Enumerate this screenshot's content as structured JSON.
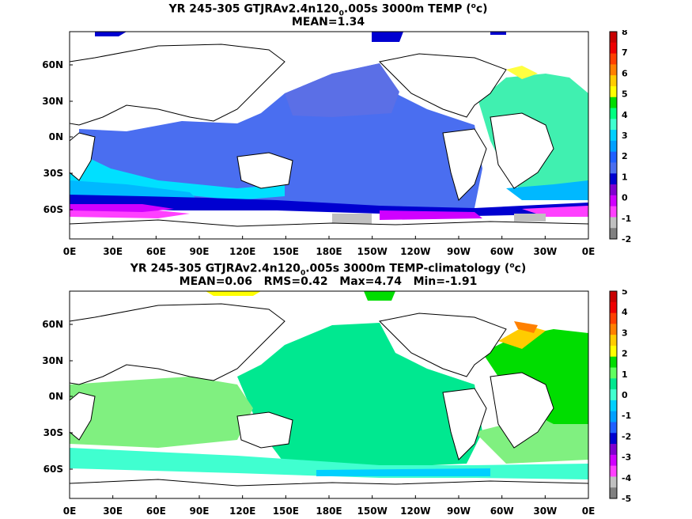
{
  "maps": [
    {
      "title_prefix": "YR 245-305 GTJRAv2.4n120",
      "title_sub": "0",
      "title_suffix": ".005s 3000m TEMP (",
      "title_sup": "o",
      "title_end": "c)",
      "stats": "MEAN=1.34",
      "lat_labels": [
        "60N",
        "30N",
        "0N",
        "30S",
        "60S"
      ],
      "lon_labels": [
        "0E",
        "30E",
        "60E",
        "90E",
        "120E",
        "150E",
        "180E",
        "150W",
        "120W",
        "90W",
        "60W",
        "30W",
        "0E"
      ],
      "colorbar_labels": [
        "8",
        "7",
        "6",
        "5",
        "4",
        "3",
        "2",
        "1",
        "0",
        "-1",
        "-2"
      ],
      "colorbar_colors": [
        "#c80000",
        "#ee0000",
        "#ff4000",
        "#ff8000",
        "#ffcc00",
        "#ffff00",
        "#00dd00",
        "#00ff80",
        "#40ffd0",
        "#00d0ff",
        "#00a0ff",
        "#2060ff",
        "#4a6ef0",
        "#0000d0",
        "#8000d0",
        "#d000ff",
        "#ff40ff",
        "#c0c0c0",
        "#808080"
      ]
    },
    {
      "title_prefix": "YR 245-305 GTJRAv2.4n120",
      "title_sub": "0",
      "title_suffix": ".005s 3000m TEMP-climatology (",
      "title_sup": "o",
      "title_end": "c)",
      "stats": "MEAN=0.06   RMS=0.42   Max=4.74   Min=-1.91",
      "lat_labels": [
        "60N",
        "30N",
        "0N",
        "30S",
        "60S"
      ],
      "lon_labels": [
        "0E",
        "30E",
        "60E",
        "90E",
        "120E",
        "150E",
        "180E",
        "150W",
        "120W",
        "90W",
        "60W",
        "30W",
        "0E"
      ],
      "colorbar_labels": [
        "5",
        "4",
        "3",
        "2",
        "1",
        "0",
        "-1",
        "-2",
        "-3",
        "-4",
        "-5"
      ],
      "colorbar_colors": [
        "#c80000",
        "#ee0000",
        "#ff4000",
        "#ff8000",
        "#ffcc00",
        "#ffff00",
        "#00dd00",
        "#60ff60",
        "#00e890",
        "#40ffd0",
        "#00d0ff",
        "#00a0ff",
        "#2060ff",
        "#0000d0",
        "#8000d0",
        "#d000ff",
        "#ff40ff",
        "#c0c0c0",
        "#808080"
      ]
    }
  ]
}
